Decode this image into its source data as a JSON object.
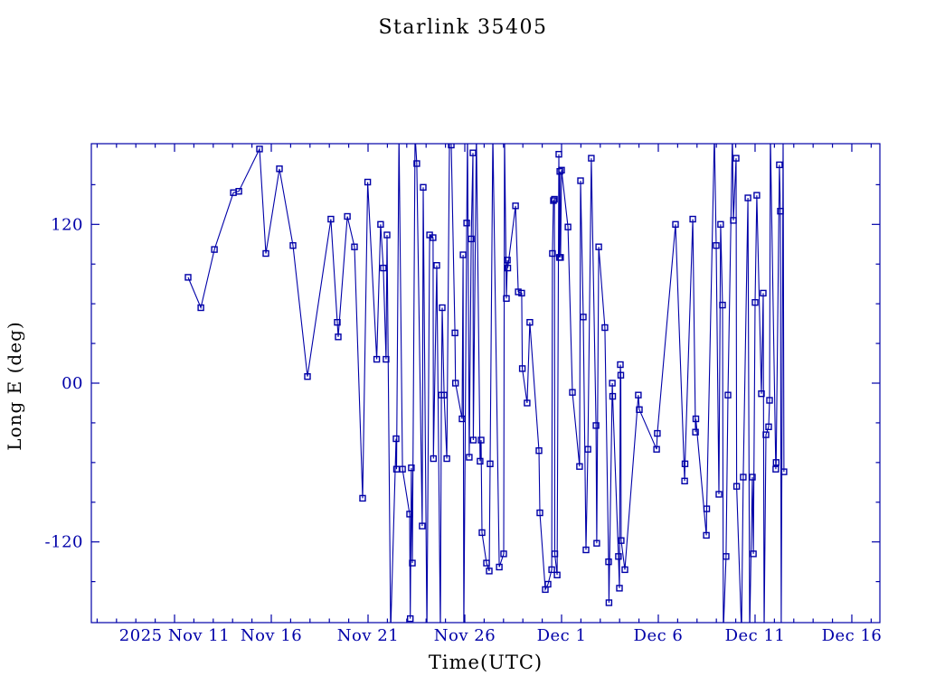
{
  "accent_color": "#0000a8",
  "chart_data": {
    "type": "line",
    "title": "Starlink 35405",
    "xlabel": "Time(UTC)",
    "ylabel": "Long E (deg)",
    "x_unit": "days since 2025 Nov 11 00:00 UTC",
    "xlim": [
      -4.3,
      36.45
    ],
    "ylim": [
      -181,
      181
    ],
    "grid": false,
    "legend_position": "none",
    "marker": "open-square",
    "line_color": "#0000a8",
    "background": "#ffffff",
    "x_major_ticks": [
      {
        "day": 0,
        "label": "2025 Nov 11"
      },
      {
        "day": 5,
        "label": "Nov 16"
      },
      {
        "day": 10,
        "label": "Nov 21"
      },
      {
        "day": 15,
        "label": "Nov 26"
      },
      {
        "day": 20,
        "label": "Dec  1"
      },
      {
        "day": 25,
        "label": "Dec  6"
      },
      {
        "day": 30,
        "label": "Dec 11"
      },
      {
        "day": 35,
        "label": "Dec 16"
      }
    ],
    "x_minor_tick_interval_days": 1,
    "y_major_ticks": [
      {
        "value": 120,
        "label": "120"
      },
      {
        "value": 0,
        "label": "00"
      },
      {
        "value": -120,
        "label": "-120"
      }
    ],
    "y_minor_tick_interval": 30,
    "series": [
      {
        "name": "Long E (deg)",
        "points": [
          [
            0.7,
            80
          ],
          [
            1.36,
            57
          ],
          [
            2.06,
            101
          ],
          [
            3.04,
            144
          ],
          [
            3.32,
            145
          ],
          [
            4.39,
            177
          ],
          [
            4.72,
            98
          ],
          [
            5.42,
            162
          ],
          [
            6.12,
            104
          ],
          [
            6.87,
            5
          ],
          [
            8.08,
            124
          ],
          [
            8.41,
            46
          ],
          [
            8.46,
            35
          ],
          [
            8.93,
            126
          ],
          [
            9.3,
            103
          ],
          [
            9.72,
            -87
          ],
          [
            9.98,
            152
          ],
          [
            10.45,
            18
          ],
          [
            10.65,
            120
          ],
          [
            10.79,
            87
          ],
          [
            10.93,
            18
          ],
          [
            10.98,
            112
          ],
          [
            11.17,
            -188
          ],
          [
            11.45,
            -42
          ],
          [
            11.47,
            -65
          ],
          [
            11.6,
            188
          ],
          [
            11.78,
            -65
          ],
          [
            12.15,
            -99
          ],
          [
            12.18,
            -178
          ],
          [
            12.24,
            -64
          ],
          [
            12.29,
            -136
          ],
          [
            12.43,
            188
          ],
          [
            12.52,
            166
          ],
          [
            12.8,
            -108
          ],
          [
            12.85,
            148
          ],
          [
            13.04,
            -188
          ],
          [
            13.18,
            112
          ],
          [
            13.36,
            110
          ],
          [
            13.38,
            -57
          ],
          [
            13.55,
            89
          ],
          [
            13.74,
            -188
          ],
          [
            13.79,
            -9
          ],
          [
            13.83,
            57
          ],
          [
            13.93,
            -9
          ],
          [
            14.07,
            -57
          ],
          [
            14.21,
            188
          ],
          [
            14.3,
            180
          ],
          [
            14.49,
            38
          ],
          [
            14.52,
            0
          ],
          [
            14.86,
            -27
          ],
          [
            14.91,
            97
          ],
          [
            14.95,
            -188
          ],
          [
            15.1,
            121
          ],
          [
            15.14,
            188
          ],
          [
            15.23,
            -56
          ],
          [
            15.33,
            109
          ],
          [
            15.42,
            174
          ],
          [
            15.44,
            -43
          ],
          [
            15.6,
            188
          ],
          [
            15.79,
            -59
          ],
          [
            15.84,
            -43
          ],
          [
            15.89,
            -113
          ],
          [
            16.12,
            -136
          ],
          [
            16.26,
            -142
          ],
          [
            16.31,
            -61
          ],
          [
            16.45,
            188
          ],
          [
            16.78,
            -139
          ],
          [
            17.01,
            -129
          ],
          [
            17.05,
            188
          ],
          [
            17.15,
            64
          ],
          [
            17.2,
            93
          ],
          [
            17.22,
            87
          ],
          [
            17.62,
            134
          ],
          [
            17.76,
            69
          ],
          [
            17.94,
            68
          ],
          [
            17.97,
            11
          ],
          [
            18.22,
            -15
          ],
          [
            18.36,
            46
          ],
          [
            18.83,
            -51
          ],
          [
            18.88,
            -98
          ],
          [
            19.16,
            -156
          ],
          [
            19.3,
            -152
          ],
          [
            19.49,
            -141
          ],
          [
            19.53,
            98
          ],
          [
            19.58,
            138
          ],
          [
            19.63,
            139
          ],
          [
            19.65,
            -129
          ],
          [
            19.77,
            -145
          ],
          [
            19.86,
            173
          ],
          [
            19.89,
            95
          ],
          [
            19.91,
            160
          ],
          [
            19.95,
            95
          ],
          [
            20.0,
            161
          ],
          [
            20.33,
            118
          ],
          [
            20.56,
            -7
          ],
          [
            20.93,
            -63
          ],
          [
            20.98,
            153
          ],
          [
            21.12,
            50
          ],
          [
            21.26,
            -126
          ],
          [
            21.36,
            -50
          ],
          [
            21.54,
            170
          ],
          [
            21.78,
            -32
          ],
          [
            21.82,
            -121
          ],
          [
            21.92,
            103
          ],
          [
            22.24,
            42
          ],
          [
            22.43,
            -135
          ],
          [
            22.45,
            -166
          ],
          [
            22.62,
            0
          ],
          [
            22.64,
            -10
          ],
          [
            22.94,
            -131
          ],
          [
            22.99,
            -155
          ],
          [
            23.04,
            14
          ],
          [
            23.06,
            6
          ],
          [
            23.08,
            -119
          ],
          [
            23.27,
            -141
          ],
          [
            23.97,
            -9
          ],
          [
            24.02,
            -20
          ],
          [
            24.91,
            -50
          ],
          [
            24.95,
            -38
          ],
          [
            25.89,
            120
          ],
          [
            26.36,
            -74
          ],
          [
            26.38,
            -61
          ],
          [
            26.78,
            124
          ],
          [
            26.92,
            -37
          ],
          [
            26.94,
            -27
          ],
          [
            27.48,
            -115
          ],
          [
            27.5,
            -95
          ],
          [
            27.9,
            188
          ],
          [
            27.99,
            104
          ],
          [
            28.13,
            -84
          ],
          [
            28.22,
            120
          ],
          [
            28.32,
            59
          ],
          [
            28.36,
            -188
          ],
          [
            28.5,
            -131
          ],
          [
            28.6,
            -9
          ],
          [
            28.83,
            188
          ],
          [
            28.88,
            123
          ],
          [
            29.02,
            170
          ],
          [
            29.05,
            -78
          ],
          [
            29.3,
            -188
          ],
          [
            29.39,
            -71
          ],
          [
            29.63,
            140
          ],
          [
            29.72,
            -188
          ],
          [
            29.86,
            -71
          ],
          [
            29.91,
            -129
          ],
          [
            30.0,
            61
          ],
          [
            30.09,
            142
          ],
          [
            30.33,
            -8
          ],
          [
            30.42,
            68
          ],
          [
            30.47,
            -188
          ],
          [
            30.56,
            -39
          ],
          [
            30.7,
            -33
          ],
          [
            30.75,
            -13
          ],
          [
            30.79,
            188
          ],
          [
            31.07,
            -65
          ],
          [
            31.09,
            -60
          ],
          [
            31.26,
            165
          ],
          [
            31.31,
            130
          ],
          [
            31.35,
            -188
          ],
          [
            31.45,
            188
          ],
          [
            31.49,
            -67
          ]
        ]
      }
    ]
  }
}
